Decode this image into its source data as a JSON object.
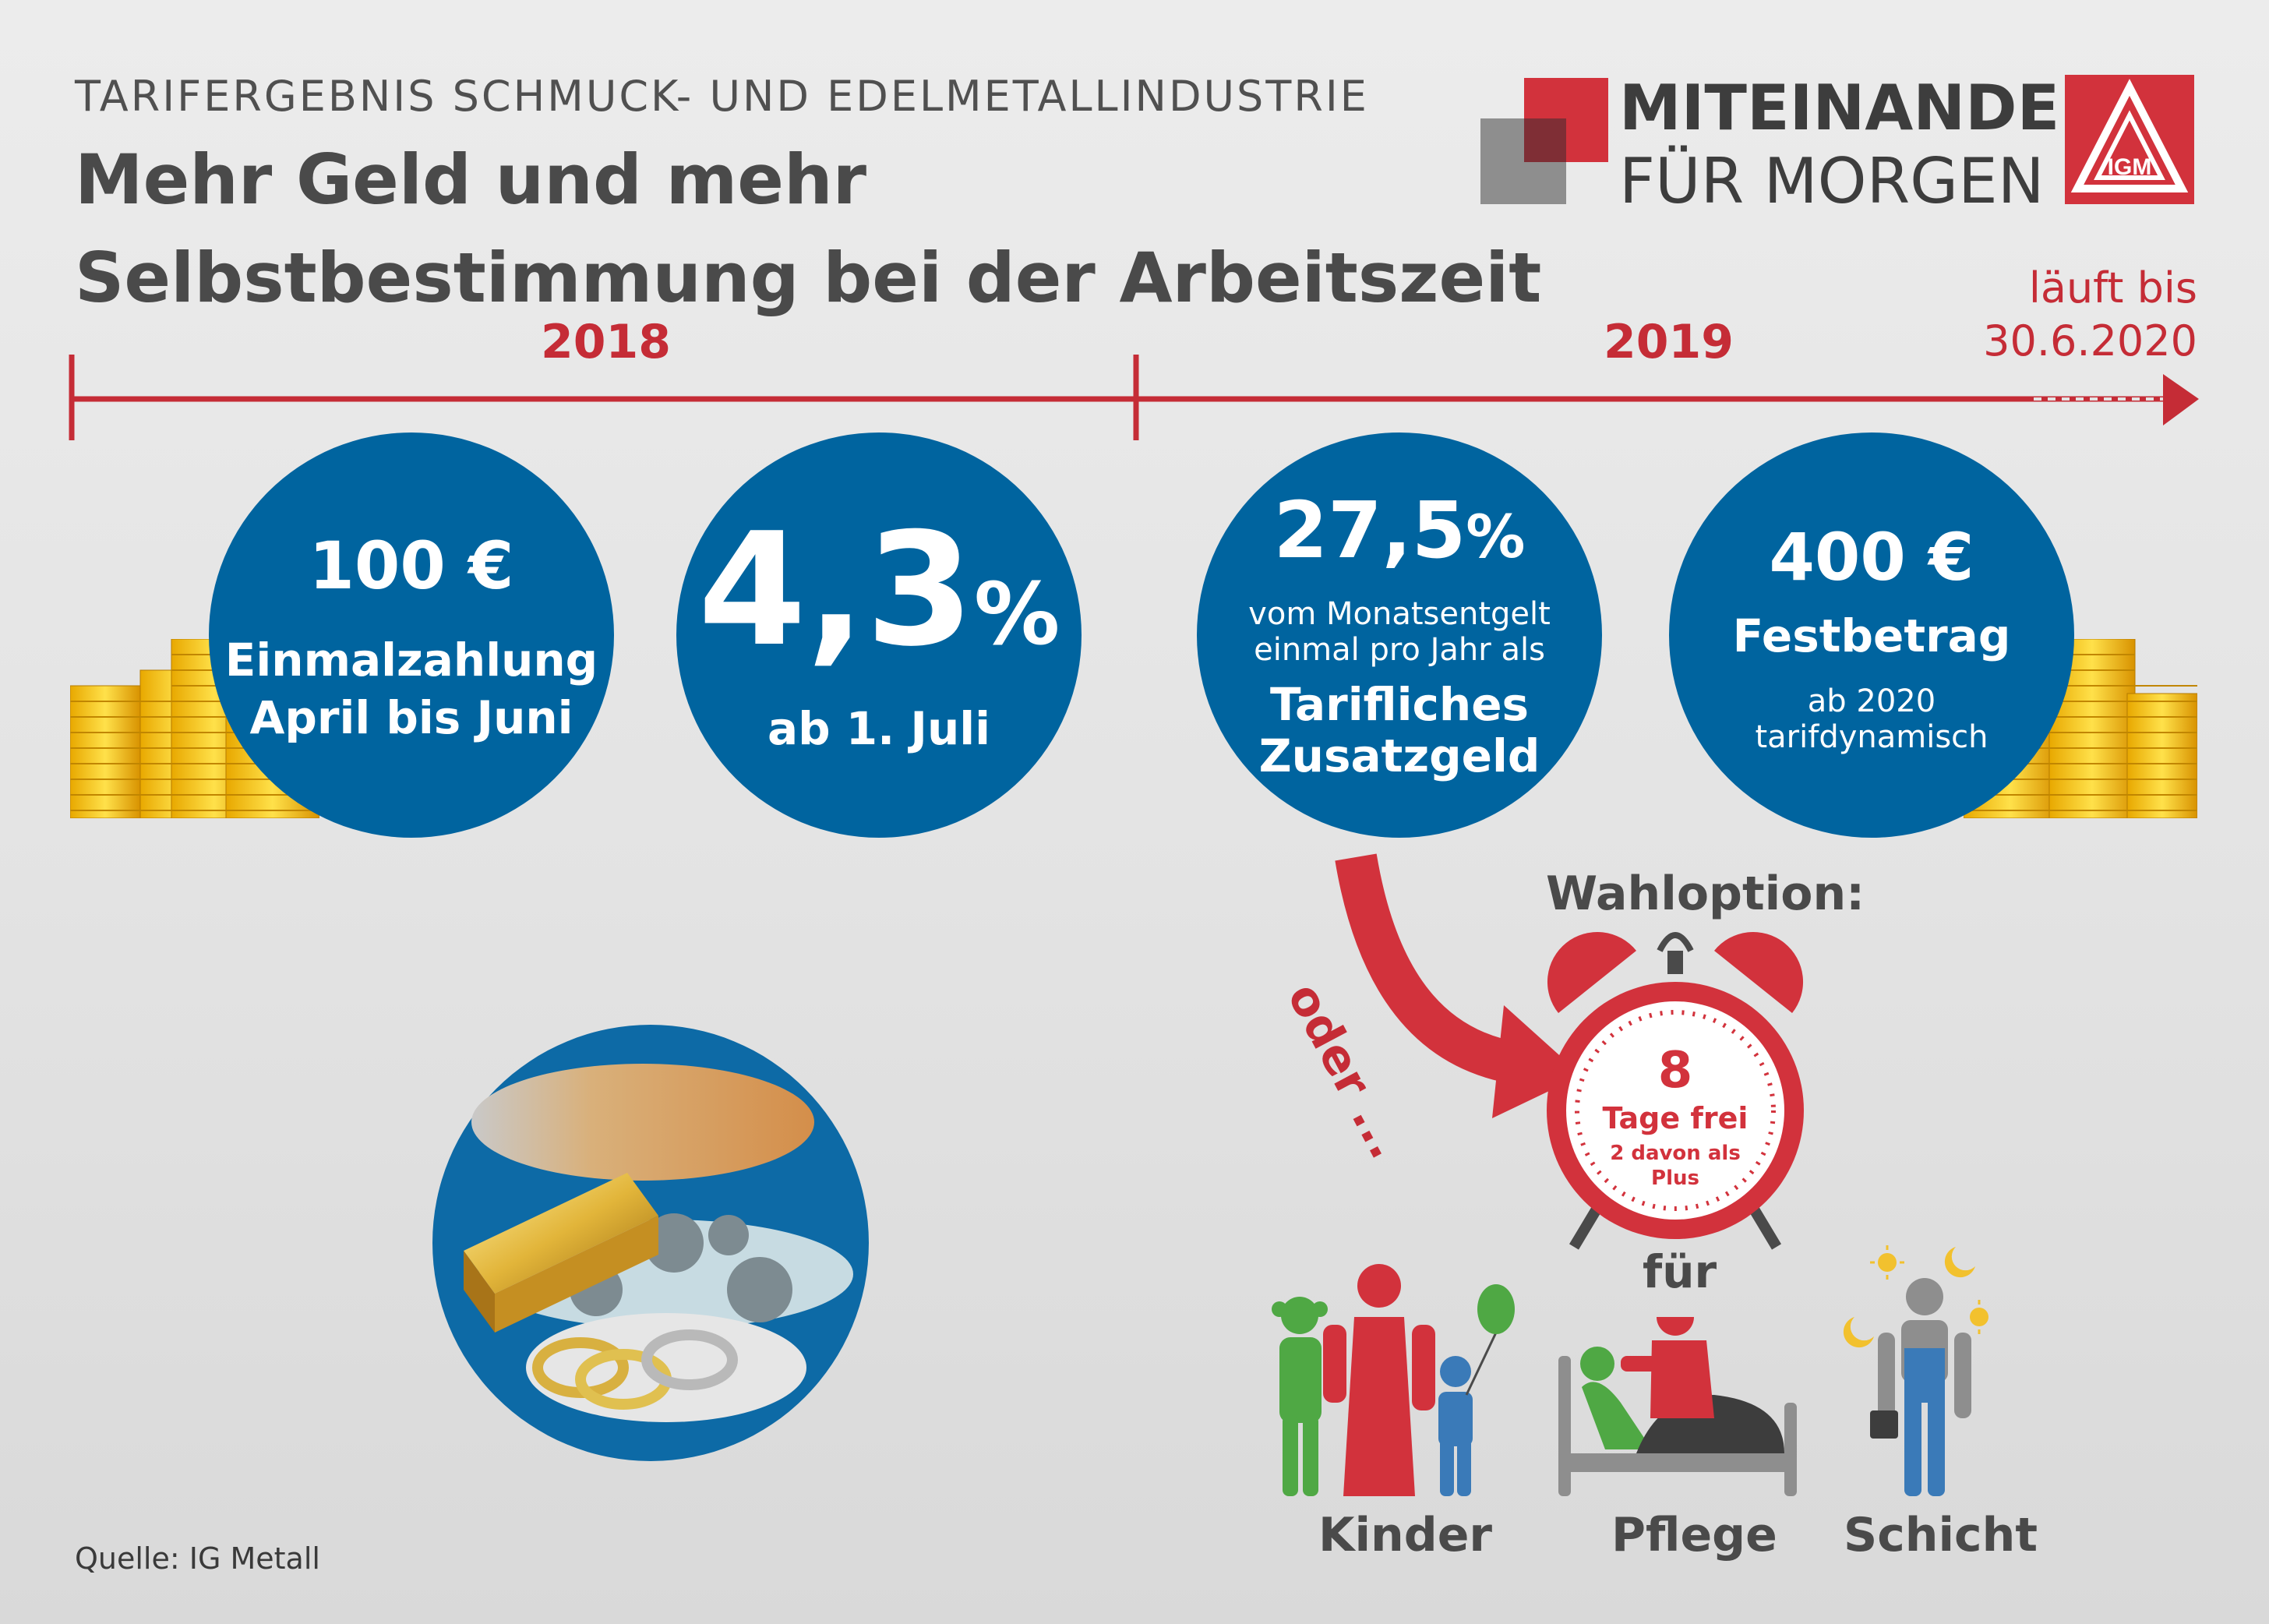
{
  "header": {
    "kicker": "TARIFERGEBNIS SCHMUCK- UND EDELMETALLINDUSTRIE",
    "headline_line1": "Mehr Geld und mehr",
    "headline_line2": "Selbstbestimmung bei der Arbeitszeit"
  },
  "brand": {
    "line1": "MITEINANDER",
    "line2": "FÜR MORGEN",
    "logo_letters": "IGM",
    "accent_color": "#d2323c"
  },
  "timeline": {
    "year1": "2018",
    "year2": "2019",
    "until_line1": "läuft bis",
    "until_line2": "30.6.2020",
    "color": "#c52c36"
  },
  "circles": [
    {
      "amount": "100 €",
      "line1": "Einmalzahlung",
      "line2": "April bis Juni"
    },
    {
      "value": "4,3",
      "unit": "%",
      "line1": "ab 1. Juli"
    },
    {
      "value": "27,5",
      "unit": "%",
      "line1": "vom Monatsentgelt",
      "line2": "einmal pro Jahr als",
      "line3": "Tarifliches",
      "line4": "Zusatzgeld"
    },
    {
      "amount": "400 €",
      "line1": "Festbetrag",
      "line2": "ab 2020",
      "line3": "tarifdynamisch"
    }
  ],
  "option": {
    "title": "Wahloption:",
    "oder": "oder ...",
    "clock_number": "8",
    "clock_line1": "Tage frei",
    "clock_line2": "2 davon als",
    "clock_line3": "Plus",
    "fuer": "für",
    "labels": [
      "Kinder",
      "Pflege",
      "Schicht"
    ]
  },
  "source": "Quelle: IG Metall",
  "colors": {
    "blue": "#00649f",
    "red": "#c52c36",
    "text": "#4a4a4a"
  }
}
